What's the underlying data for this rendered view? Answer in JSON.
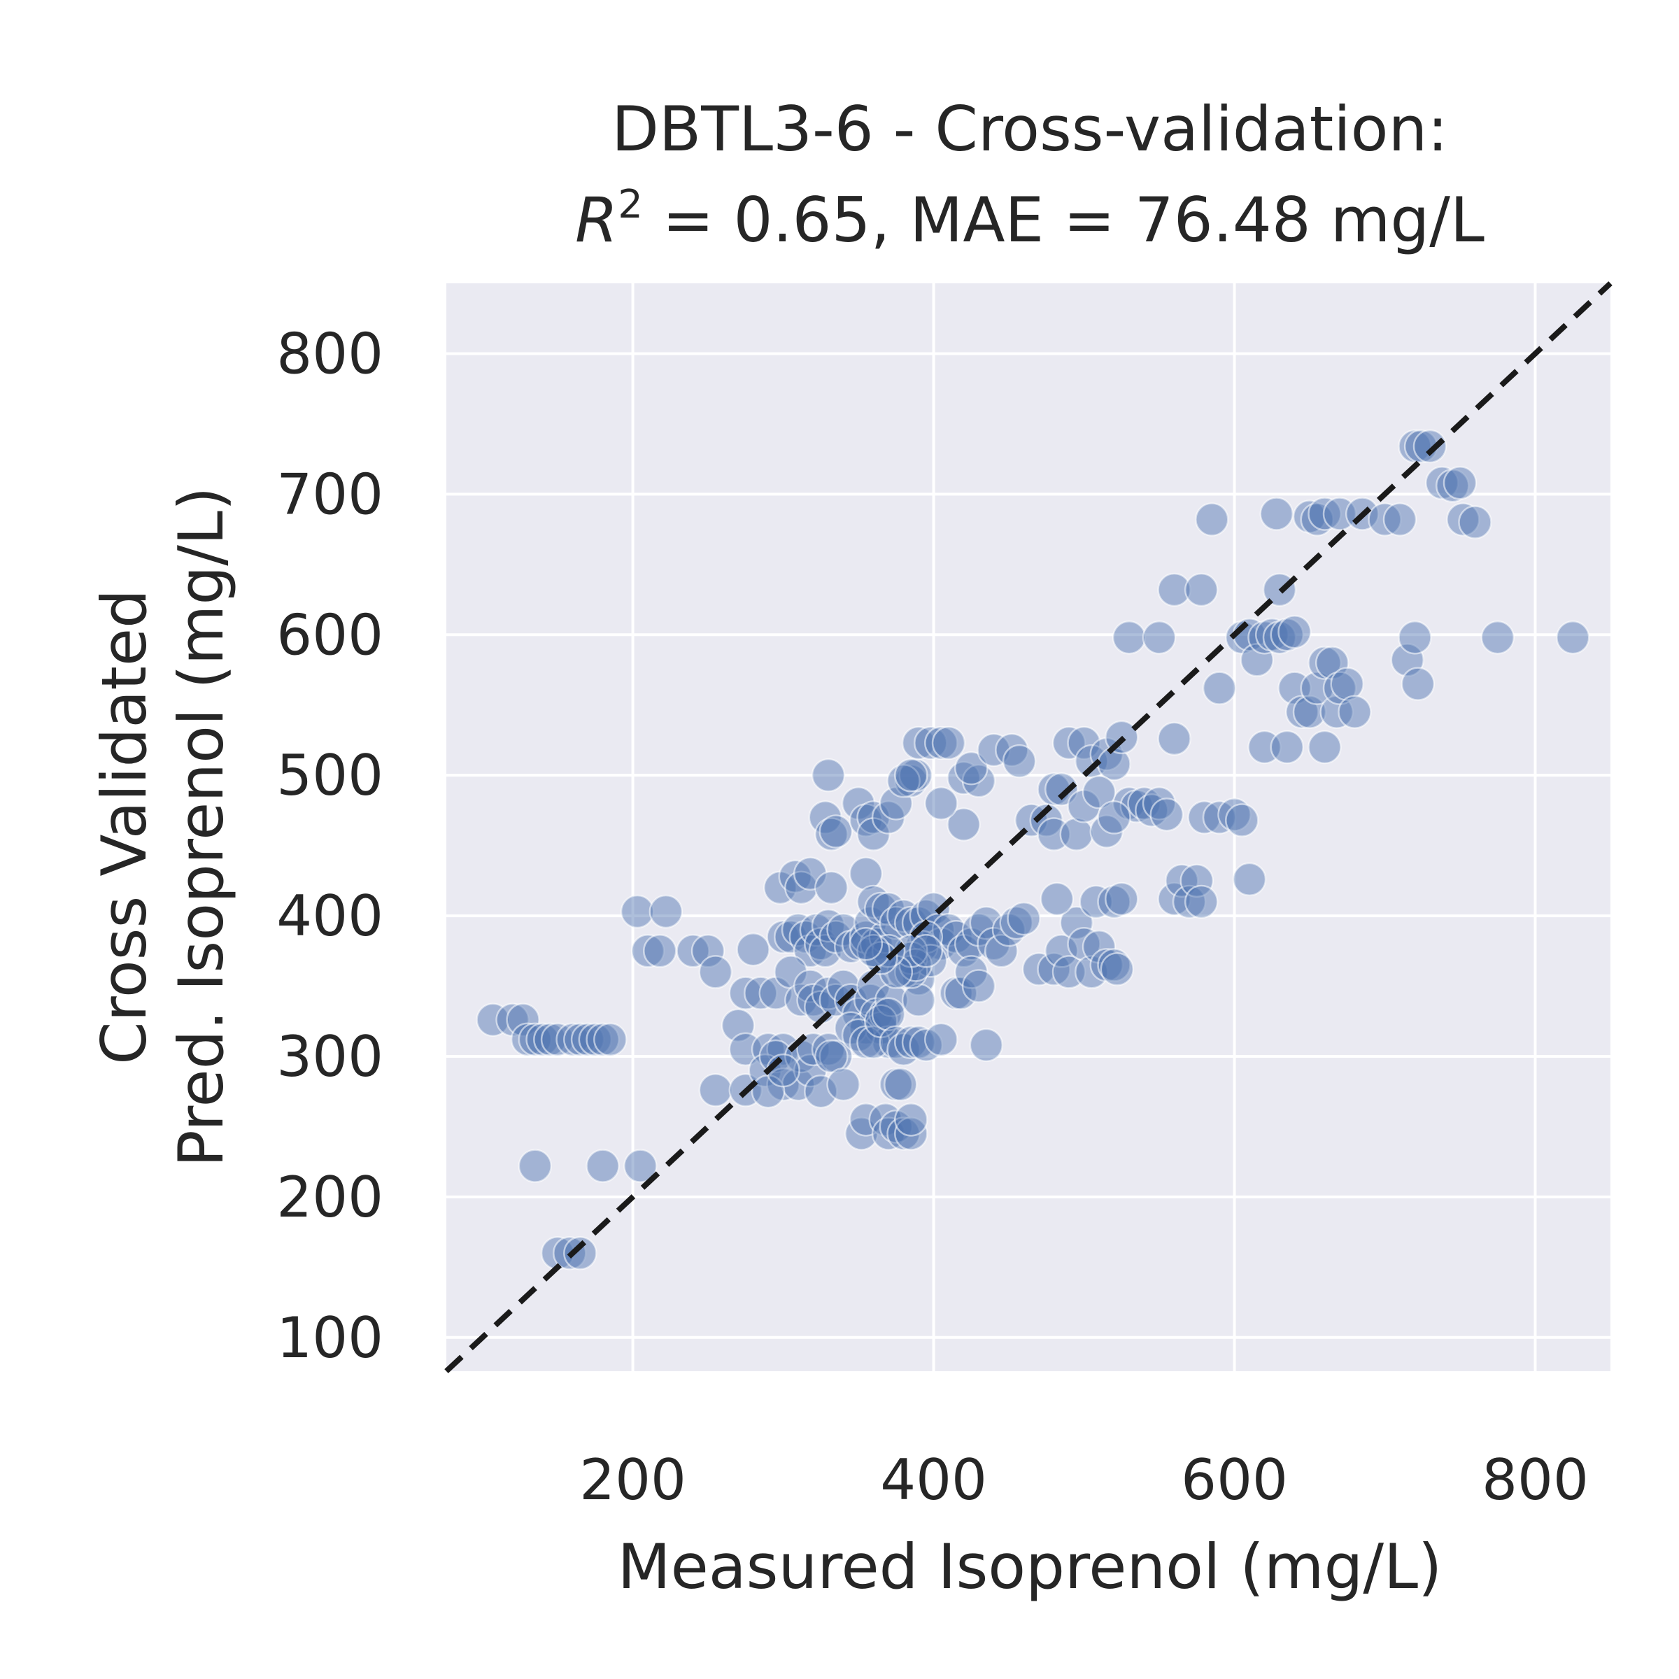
{
  "chart_data": {
    "type": "scatter",
    "title_line1": "DBTL3-6 - Cross-validation:",
    "title_r2_symbol": "R",
    "title_r2_exponent": "2",
    "title_rest": " = 0.65, MAE = 76.48 mg/L",
    "xlabel": "Measured Isoprenol (mg/L)",
    "ylabel_line1": "Cross Validated",
    "ylabel_line2": "Pred. Isoprenol (mg/L)",
    "xlim": [
      76,
      850
    ],
    "ylim": [
      76,
      850
    ],
    "xticks": [
      200,
      400,
      600,
      800
    ],
    "yticks": [
      100,
      200,
      300,
      400,
      500,
      600,
      700,
      800
    ],
    "reference_line": "y = x",
    "grid": true,
    "colors": {
      "background": "#eaeaf2",
      "grid": "#ffffff",
      "points": "#4c72b0",
      "reference_line": "#1a1a1a",
      "text": "#262626"
    },
    "points": [
      [
        107,
        326
      ],
      [
        120,
        326
      ],
      [
        127,
        326
      ],
      [
        130,
        312
      ],
      [
        135,
        312
      ],
      [
        140,
        312
      ],
      [
        145,
        312
      ],
      [
        150,
        312
      ],
      [
        160,
        312
      ],
      [
        165,
        312
      ],
      [
        170,
        312
      ],
      [
        175,
        312
      ],
      [
        180,
        312
      ],
      [
        185,
        312
      ],
      [
        135,
        222
      ],
      [
        180,
        222
      ],
      [
        205,
        222
      ],
      [
        150,
        160
      ],
      [
        158,
        160
      ],
      [
        165,
        160
      ],
      [
        203,
        403
      ],
      [
        222,
        403
      ],
      [
        210,
        375
      ],
      [
        218,
        375
      ],
      [
        240,
        375
      ],
      [
        250,
        375
      ],
      [
        255,
        360
      ],
      [
        255,
        276
      ],
      [
        275,
        276
      ],
      [
        270,
        322
      ],
      [
        275,
        345
      ],
      [
        285,
        345
      ],
      [
        295,
        345
      ],
      [
        280,
        376
      ],
      [
        275,
        305
      ],
      [
        290,
        305
      ],
      [
        300,
        305
      ],
      [
        288,
        290
      ],
      [
        295,
        300
      ],
      [
        300,
        280
      ],
      [
        310,
        280
      ],
      [
        312,
        300
      ],
      [
        318,
        290
      ],
      [
        320,
        305
      ],
      [
        330,
        305
      ],
      [
        335,
        300
      ],
      [
        290,
        275
      ],
      [
        300,
        290
      ],
      [
        298,
        420
      ],
      [
        308,
        428
      ],
      [
        312,
        420
      ],
      [
        318,
        430
      ],
      [
        332,
        420
      ],
      [
        300,
        385
      ],
      [
        305,
        385
      ],
      [
        310,
        390
      ],
      [
        315,
        385
      ],
      [
        318,
        375
      ],
      [
        322,
        390
      ],
      [
        325,
        380
      ],
      [
        328,
        375
      ],
      [
        330,
        393
      ],
      [
        335,
        385
      ],
      [
        340,
        390
      ],
      [
        345,
        378
      ],
      [
        350,
        380
      ],
      [
        355,
        385
      ],
      [
        358,
        395
      ],
      [
        362,
        380
      ],
      [
        365,
        370
      ],
      [
        368,
        385
      ],
      [
        305,
        360
      ],
      [
        312,
        340
      ],
      [
        318,
        350
      ],
      [
        320,
        340
      ],
      [
        325,
        335
      ],
      [
        330,
        345
      ],
      [
        335,
        340
      ],
      [
        340,
        350
      ],
      [
        345,
        340
      ],
      [
        350,
        330
      ],
      [
        355,
        320
      ],
      [
        358,
        340
      ],
      [
        360,
        350
      ],
      [
        362,
        330
      ],
      [
        365,
        320
      ],
      [
        368,
        330
      ],
      [
        370,
        310
      ],
      [
        372,
        340
      ],
      [
        325,
        275
      ],
      [
        332,
        300
      ],
      [
        340,
        280
      ],
      [
        345,
        320
      ],
      [
        350,
        315
      ],
      [
        355,
        310
      ],
      [
        360,
        310
      ],
      [
        365,
        325
      ],
      [
        370,
        330
      ],
      [
        375,
        310
      ],
      [
        380,
        305
      ],
      [
        385,
        310
      ],
      [
        390,
        310
      ],
      [
        395,
        308
      ],
      [
        405,
        312
      ],
      [
        435,
        308
      ],
      [
        328,
        470
      ],
      [
        332,
        458
      ],
      [
        335,
        460
      ],
      [
        350,
        480
      ],
      [
        355,
        468
      ],
      [
        360,
        470
      ],
      [
        360,
        458
      ],
      [
        370,
        470
      ],
      [
        375,
        480
      ],
      [
        385,
        496
      ],
      [
        388,
        500
      ],
      [
        390,
        523
      ],
      [
        398,
        523
      ],
      [
        405,
        523
      ],
      [
        410,
        523
      ],
      [
        420,
        498
      ],
      [
        430,
        496
      ],
      [
        425,
        505
      ],
      [
        420,
        465
      ],
      [
        405,
        480
      ],
      [
        380,
        496
      ],
      [
        385,
        500
      ],
      [
        330,
        500
      ],
      [
        355,
        430
      ],
      [
        360,
        410
      ],
      [
        365,
        405
      ],
      [
        370,
        405
      ],
      [
        375,
        395
      ],
      [
        380,
        400
      ],
      [
        385,
        395
      ],
      [
        390,
        395
      ],
      [
        395,
        400
      ],
      [
        400,
        405
      ],
      [
        403,
        390
      ],
      [
        405,
        380
      ],
      [
        410,
        390
      ],
      [
        415,
        385
      ],
      [
        420,
        375
      ],
      [
        425,
        380
      ],
      [
        430,
        390
      ],
      [
        435,
        395
      ],
      [
        440,
        380
      ],
      [
        445,
        375
      ],
      [
        450,
        390
      ],
      [
        455,
        395
      ],
      [
        460,
        398
      ],
      [
        415,
        345
      ],
      [
        418,
        345
      ],
      [
        425,
        360
      ],
      [
        430,
        350
      ],
      [
        390,
        355
      ],
      [
        390,
        340
      ],
      [
        392,
        378
      ],
      [
        395,
        385
      ],
      [
        398,
        368
      ],
      [
        380,
        360
      ],
      [
        385,
        370
      ],
      [
        385,
        360
      ],
      [
        388,
        365
      ],
      [
        385,
        375
      ],
      [
        395,
        375
      ],
      [
        375,
        360
      ],
      [
        370,
        375
      ],
      [
        365,
        370
      ],
      [
        360,
        375
      ],
      [
        355,
        380
      ],
      [
        352,
        245
      ],
      [
        355,
        255
      ],
      [
        368,
        255
      ],
      [
        370,
        245
      ],
      [
        375,
        250
      ],
      [
        380,
        245
      ],
      [
        385,
        245
      ],
      [
        385,
        255
      ],
      [
        375,
        280
      ],
      [
        378,
        280
      ],
      [
        440,
        518
      ],
      [
        452,
        518
      ],
      [
        457,
        510
      ],
      [
        480,
        490
      ],
      [
        485,
        490
      ],
      [
        490,
        523
      ],
      [
        500,
        523
      ],
      [
        505,
        510
      ],
      [
        515,
        515
      ],
      [
        520,
        508
      ],
      [
        525,
        527
      ],
      [
        530,
        480
      ],
      [
        535,
        478
      ],
      [
        540,
        480
      ],
      [
        545,
        475
      ],
      [
        550,
        480
      ],
      [
        555,
        472
      ],
      [
        465,
        468
      ],
      [
        475,
        468
      ],
      [
        480,
        458
      ],
      [
        495,
        458
      ],
      [
        500,
        478
      ],
      [
        510,
        488
      ],
      [
        515,
        460
      ],
      [
        520,
        470
      ],
      [
        470,
        362
      ],
      [
        480,
        362
      ],
      [
        485,
        375
      ],
      [
        490,
        360
      ],
      [
        495,
        395
      ],
      [
        500,
        380
      ],
      [
        505,
        360
      ],
      [
        510,
        378
      ],
      [
        515,
        365
      ],
      [
        520,
        365
      ],
      [
        522,
        362
      ],
      [
        508,
        410
      ],
      [
        520,
        410
      ],
      [
        525,
        412
      ],
      [
        482,
        412
      ],
      [
        530,
        598
      ],
      [
        550,
        598
      ],
      [
        560,
        632
      ],
      [
        578,
        632
      ],
      [
        560,
        526
      ],
      [
        585,
        682
      ],
      [
        590,
        562
      ],
      [
        560,
        412
      ],
      [
        565,
        425
      ],
      [
        570,
        410
      ],
      [
        575,
        425
      ],
      [
        578,
        410
      ],
      [
        580,
        470
      ],
      [
        590,
        470
      ],
      [
        600,
        472
      ],
      [
        605,
        468
      ],
      [
        610,
        426
      ],
      [
        605,
        598
      ],
      [
        610,
        600
      ],
      [
        615,
        582
      ],
      [
        620,
        598
      ],
      [
        625,
        600
      ],
      [
        630,
        598
      ],
      [
        635,
        600
      ],
      [
        640,
        602
      ],
      [
        640,
        562
      ],
      [
        645,
        545
      ],
      [
        650,
        545
      ],
      [
        655,
        562
      ],
      [
        660,
        580
      ],
      [
        665,
        580
      ],
      [
        668,
        545
      ],
      [
        670,
        562
      ],
      [
        675,
        565
      ],
      [
        680,
        545
      ],
      [
        630,
        632
      ],
      [
        660,
        520
      ],
      [
        620,
        520
      ],
      [
        635,
        520
      ],
      [
        628,
        686
      ],
      [
        650,
        684
      ],
      [
        655,
        682
      ],
      [
        660,
        686
      ],
      [
        670,
        686
      ],
      [
        685,
        686
      ],
      [
        700,
        682
      ],
      [
        710,
        682
      ],
      [
        715,
        582
      ],
      [
        720,
        598
      ],
      [
        722,
        565
      ],
      [
        720,
        734
      ],
      [
        724,
        734
      ],
      [
        730,
        734
      ],
      [
        738,
        708
      ],
      [
        745,
        706
      ],
      [
        750,
        708
      ],
      [
        752,
        682
      ],
      [
        760,
        680
      ],
      [
        775,
        598
      ],
      [
        825,
        598
      ]
    ]
  }
}
